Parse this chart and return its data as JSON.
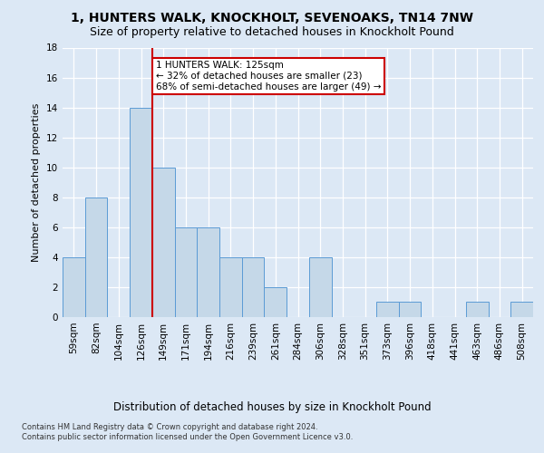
{
  "title1": "1, HUNTERS WALK, KNOCKHOLT, SEVENOAKS, TN14 7NW",
  "title2": "Size of property relative to detached houses in Knockholt Pound",
  "xlabel": "Distribution of detached houses by size in Knockholt Pound",
  "ylabel": "Number of detached properties",
  "footnote": "Contains HM Land Registry data © Crown copyright and database right 2024.\nContains public sector information licensed under the Open Government Licence v3.0.",
  "categories": [
    "59sqm",
    "82sqm",
    "104sqm",
    "126sqm",
    "149sqm",
    "171sqm",
    "194sqm",
    "216sqm",
    "239sqm",
    "261sqm",
    "284sqm",
    "306sqm",
    "328sqm",
    "351sqm",
    "373sqm",
    "396sqm",
    "418sqm",
    "441sqm",
    "463sqm",
    "486sqm",
    "508sqm"
  ],
  "values": [
    4,
    8,
    0,
    14,
    10,
    6,
    6,
    4,
    4,
    2,
    0,
    4,
    0,
    0,
    1,
    1,
    0,
    0,
    1,
    0,
    1
  ],
  "bar_color": "#c5d8e8",
  "bar_edge_color": "#5b9bd5",
  "vline_x": 3.5,
  "vline_color": "#cc0000",
  "annotation_text": "1 HUNTERS WALK: 125sqm\n← 32% of detached houses are smaller (23)\n68% of semi-detached houses are larger (49) →",
  "annotation_box_color": "#ffffff",
  "annotation_box_edge": "#cc0000",
  "ylim": [
    0,
    18
  ],
  "yticks": [
    0,
    2,
    4,
    6,
    8,
    10,
    12,
    14,
    16,
    18
  ],
  "bg_color": "#dce8f5",
  "plot_bg_color": "#dce8f5",
  "grid_color": "#ffffff",
  "title1_fontsize": 10,
  "title2_fontsize": 9,
  "xlabel_fontsize": 8.5,
  "ylabel_fontsize": 8,
  "tick_fontsize": 7.5,
  "annotation_fontsize": 7.5
}
